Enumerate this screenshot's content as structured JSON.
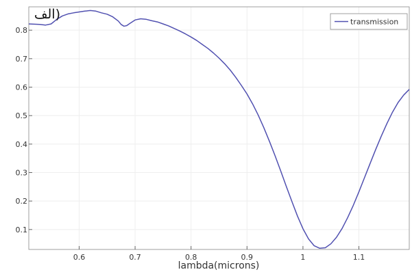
{
  "chart_data": {
    "type": "line",
    "title": "(الف",
    "xlabel": "lambda(microns)",
    "ylabel": "",
    "xlim": [
      0.51,
      1.19
    ],
    "ylim": [
      0.03,
      0.882
    ],
    "grid": true,
    "legend": {
      "position": "top-right",
      "entries": [
        "transmission"
      ]
    },
    "x_ticks": [
      0.6,
      0.7,
      0.8,
      0.9,
      1.0,
      1.1
    ],
    "x_tick_labels": [
      "0.6",
      "0.7",
      "0.8",
      "0.9",
      "1",
      "1.1"
    ],
    "y_ticks": [
      0.1,
      0.2,
      0.3,
      0.4,
      0.5,
      0.6,
      0.7,
      0.8
    ],
    "y_tick_labels": [
      "0.1",
      "0.2",
      "0.3",
      "0.4",
      "0.5",
      "0.6",
      "0.7",
      "0.8"
    ],
    "series": [
      {
        "name": "transmission",
        "color": "#5050b0",
        "x": [
          0.51,
          0.52,
          0.53,
          0.54,
          0.55,
          0.56,
          0.57,
          0.58,
          0.59,
          0.6,
          0.61,
          0.62,
          0.63,
          0.64,
          0.65,
          0.66,
          0.67,
          0.675,
          0.68,
          0.685,
          0.69,
          0.7,
          0.71,
          0.72,
          0.73,
          0.74,
          0.75,
          0.76,
          0.77,
          0.78,
          0.79,
          0.8,
          0.81,
          0.82,
          0.83,
          0.84,
          0.85,
          0.86,
          0.87,
          0.88,
          0.89,
          0.9,
          0.91,
          0.92,
          0.93,
          0.94,
          0.95,
          0.96,
          0.97,
          0.98,
          0.99,
          1.0,
          1.01,
          1.02,
          1.03,
          1.04,
          1.05,
          1.06,
          1.07,
          1.08,
          1.09,
          1.1,
          1.11,
          1.12,
          1.13,
          1.14,
          1.15,
          1.16,
          1.17,
          1.18,
          1.19
        ],
        "y": [
          0.822,
          0.821,
          0.82,
          0.818,
          0.822,
          0.838,
          0.85,
          0.857,
          0.861,
          0.864,
          0.867,
          0.869,
          0.867,
          0.861,
          0.856,
          0.847,
          0.832,
          0.82,
          0.814,
          0.816,
          0.823,
          0.836,
          0.84,
          0.838,
          0.833,
          0.829,
          0.822,
          0.815,
          0.806,
          0.797,
          0.787,
          0.776,
          0.764,
          0.75,
          0.736,
          0.72,
          0.702,
          0.682,
          0.66,
          0.634,
          0.606,
          0.576,
          0.541,
          0.502,
          0.458,
          0.41,
          0.36,
          0.307,
          0.253,
          0.2,
          0.148,
          0.103,
          0.067,
          0.043,
          0.034,
          0.036,
          0.05,
          0.073,
          0.104,
          0.142,
          0.185,
          0.232,
          0.282,
          0.332,
          0.381,
          0.428,
          0.472,
          0.512,
          0.546,
          0.572,
          0.592
        ]
      }
    ]
  }
}
